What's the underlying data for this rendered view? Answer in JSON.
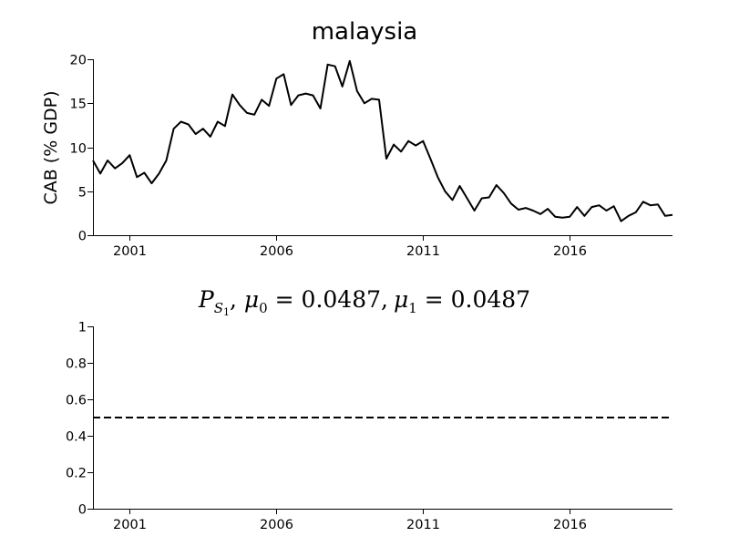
{
  "chart_data": [
    {
      "type": "line",
      "title": "malaysia",
      "xlabel": "",
      "ylabel": "CAB (% GDP)",
      "xlim": [
        1999.75,
        2019.5
      ],
      "ylim": [
        0,
        20
      ],
      "xticks": [
        {
          "value": 2001,
          "label": "2001"
        },
        {
          "value": 2006,
          "label": "2006"
        },
        {
          "value": 2011,
          "label": "2011"
        },
        {
          "value": 2016,
          "label": "2016"
        }
      ],
      "yticks": [
        {
          "value": 0,
          "label": "0"
        },
        {
          "value": 5,
          "label": "5"
        },
        {
          "value": 10,
          "label": "10"
        },
        {
          "value": 15,
          "label": "15"
        },
        {
          "value": 20,
          "label": "20"
        }
      ],
      "grid": false,
      "series": [
        {
          "x": [
            1999.75,
            2000,
            2000.25,
            2000.5,
            2000.75,
            2001,
            2001.25,
            2001.5,
            2001.75,
            2002,
            2002.25,
            2002.5,
            2002.75,
            2003,
            2003.25,
            2003.5,
            2003.75,
            2004,
            2004.25,
            2004.5,
            2004.75,
            2005,
            2005.25,
            2005.5,
            2005.75,
            2006,
            2006.25,
            2006.5,
            2006.75,
            2007,
            2007.25,
            2007.5,
            2007.75,
            2008,
            2008.25,
            2008.5,
            2008.75,
            2009,
            2009.25,
            2009.5,
            2009.75,
            2010,
            2010.25,
            2010.5,
            2010.75,
            2011,
            2011.25,
            2011.5,
            2011.75,
            2012,
            2012.25,
            2012.5,
            2012.75,
            2013,
            2013.25,
            2013.5,
            2013.75,
            2014,
            2014.25,
            2014.5,
            2014.75,
            2015,
            2015.25,
            2015.5,
            2015.75,
            2016,
            2016.25,
            2016.5,
            2016.75,
            2017,
            2017.25,
            2017.5,
            2017.75,
            2018,
            2018.25,
            2018.5,
            2018.75,
            2019,
            2019.25,
            2019.5
          ],
          "y": [
            8.5,
            7.0,
            8.5,
            7.6,
            8.2,
            9.1,
            6.6,
            7.1,
            5.9,
            7.0,
            8.5,
            12.1,
            12.9,
            12.6,
            11.5,
            12.1,
            11.2,
            12.9,
            12.4,
            16.0,
            14.8,
            13.9,
            13.7,
            15.4,
            14.7,
            17.8,
            18.3,
            14.8,
            15.9,
            16.1,
            15.9,
            14.4,
            19.4,
            19.2,
            16.9,
            19.8,
            16.4,
            15.0,
            15.5,
            15.4,
            8.7,
            10.3,
            9.5,
            10.7,
            10.2,
            10.7,
            8.7,
            6.6,
            5.0,
            4.0,
            5.6,
            4.2,
            2.8,
            4.2,
            4.3,
            5.7,
            4.8,
            3.6,
            2.9,
            3.1,
            2.8,
            2.4,
            3.0,
            2.1,
            2.0,
            2.1,
            3.2,
            2.2,
            3.2,
            3.4,
            2.8,
            3.3,
            1.6,
            2.2,
            2.6,
            3.8,
            3.4,
            3.5,
            2.2,
            2.3
          ]
        }
      ]
    },
    {
      "type": "line",
      "title_parts": {
        "p": "P",
        "p_sub": "S",
        "p_sub_sub": "1",
        "mu0": "μ",
        "mu0_sub": "0",
        "eq0": " = 0.0487,",
        "mu1": "μ",
        "mu1_sub": "1",
        "eq1": " = 0.0487"
      },
      "xlabel": "",
      "ylabel": "",
      "xlim": [
        1999.75,
        2019.5
      ],
      "ylim": [
        0,
        1
      ],
      "xticks": [
        {
          "value": 2001,
          "label": "2001"
        },
        {
          "value": 2006,
          "label": "2006"
        },
        {
          "value": 2011,
          "label": "2011"
        },
        {
          "value": 2016,
          "label": "2016"
        }
      ],
      "yticks": [
        {
          "value": 0,
          "label": "0"
        },
        {
          "value": 0.2,
          "label": "0.2"
        },
        {
          "value": 0.4,
          "label": "0.4"
        },
        {
          "value": 0.6,
          "label": "0.6"
        },
        {
          "value": 0.8,
          "label": "0.8"
        },
        {
          "value": 1,
          "label": "1"
        }
      ],
      "grid": false,
      "series": [
        {
          "style": "dashed",
          "x": [
            1999.75,
            2019.5
          ],
          "y": [
            0.5,
            0.5
          ]
        }
      ]
    }
  ]
}
